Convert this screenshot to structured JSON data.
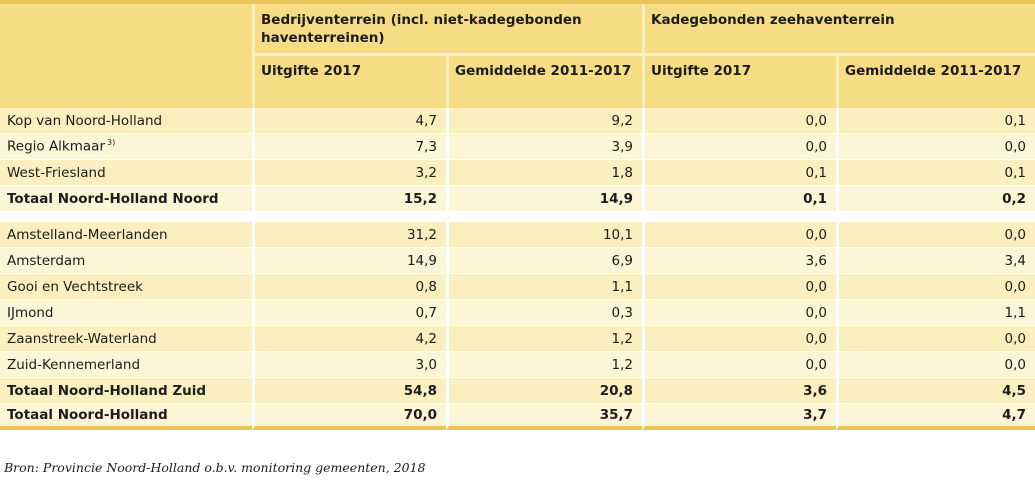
{
  "table": {
    "stub_header": "",
    "group_headers": [
      "Bedrijventerrein (incl. niet-kadegebonden haventerreinen)",
      "Kadegebonden zeehaventerrein"
    ],
    "sub_headers": [
      "Uitgifte 2017",
      "Gemiddelde 2011-2017",
      "Uitgifte 2017",
      "Gemiddelde 2011-2017"
    ],
    "section1": [
      {
        "label": "Kop van Noord-Holland",
        "sup": "",
        "v": [
          "4,7",
          "9,2",
          "0,0",
          "0,1"
        ]
      },
      {
        "label": "Regio Alkmaar",
        "sup": "3)",
        "v": [
          "7,3",
          "3,9",
          "0,0",
          "0,0"
        ]
      },
      {
        "label": "West-Friesland",
        "sup": "",
        "v": [
          "3,2",
          "1,8",
          "0,1",
          "0,1"
        ]
      },
      {
        "label": "Totaal Noord-Holland Noord",
        "sup": "",
        "v": [
          "15,2",
          "14,9",
          "0,1",
          "0,2"
        ]
      }
    ],
    "section2": [
      {
        "label": "Amstelland-Meerlanden",
        "v": [
          "31,2",
          "10,1",
          "0,0",
          "0,0"
        ]
      },
      {
        "label": "Amsterdam",
        "v": [
          "14,9",
          "6,9",
          "3,6",
          "3,4"
        ]
      },
      {
        "label": "Gooi en Vechtstreek",
        "v": [
          "0,8",
          "1,1",
          "0,0",
          "0,0"
        ]
      },
      {
        "label": "IJmond",
        "v": [
          "0,7",
          "0,3",
          "0,0",
          "1,1"
        ]
      },
      {
        "label": "Zaanstreek-Waterland",
        "v": [
          "4,2",
          "1,2",
          "0,0",
          "0,0"
        ]
      },
      {
        "label": "Zuid-Kennemerland",
        "v": [
          "3,0",
          "1,2",
          "0,0",
          "0,0"
        ]
      },
      {
        "label": "Totaal Noord-Holland Zuid",
        "v": [
          "54,8",
          "20,8",
          "3,6",
          "4,5"
        ]
      },
      {
        "label": "Totaal Noord-Holland",
        "v": [
          "70,0",
          "35,7",
          "3,7",
          "4,7"
        ]
      }
    ]
  },
  "source": "Bron: Provincie Noord-Holland o.b.v. monitoring gemeenten, 2018"
}
